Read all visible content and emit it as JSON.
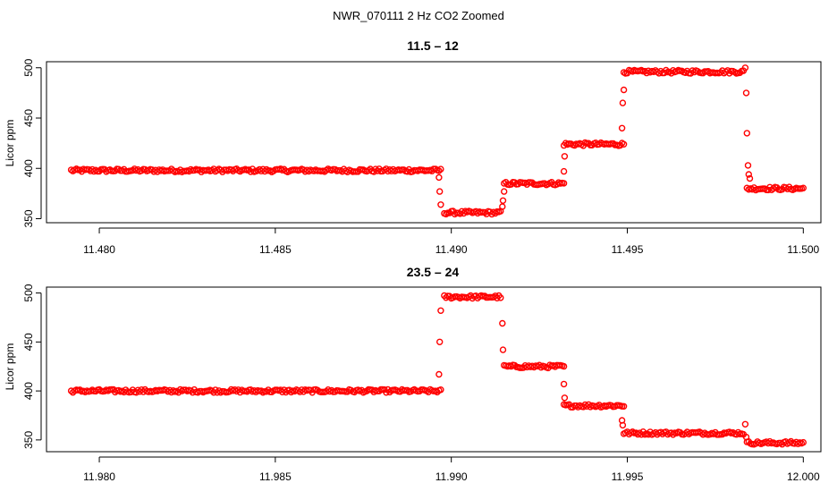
{
  "figure": {
    "title": "NWR_070111  2 Hz CO2 Zoomed"
  },
  "colors": {
    "points": "#ff0000",
    "axes": "#000000",
    "background": "#ffffff"
  },
  "chart_data": [
    {
      "type": "scatter",
      "title": "11.5 – 12",
      "xlabel": "",
      "ylabel": "Licor ppm",
      "xlim": [
        11.4785,
        11.5005
      ],
      "ylim": [
        346,
        506
      ],
      "xticks": [
        11.48,
        11.485,
        11.49,
        11.495,
        11.5
      ],
      "xtick_labels": [
        "11.480",
        "11.485",
        "11.490",
        "11.495",
        "11.500"
      ],
      "yticks": [
        350,
        400,
        450,
        500
      ],
      "ytick_labels": [
        "350",
        "400",
        "450",
        "500"
      ],
      "grid": false,
      "marker": "open-circle",
      "segments": [
        {
          "x_start": 11.4792,
          "x_end": 11.4897,
          "y": 398
        },
        {
          "x_start": 11.4898,
          "x_end": 11.4914,
          "y": 356
        },
        {
          "x_start": 11.4915,
          "x_end": 11.4932,
          "y": 385
        },
        {
          "x_start": 11.4932,
          "x_end": 11.4949,
          "y": 424
        },
        {
          "x_start": 11.4949,
          "x_end": 11.4983,
          "y": 496
        },
        {
          "x_start": 11.4984,
          "x_end": 11.5,
          "y": 380
        }
      ],
      "transitions": [
        {
          "x": 11.48965,
          "y": 391
        },
        {
          "x": 11.48967,
          "y": 377
        },
        {
          "x": 11.4897,
          "y": 364
        },
        {
          "x": 11.49145,
          "y": 362
        },
        {
          "x": 11.49147,
          "y": 368
        },
        {
          "x": 11.4915,
          "y": 377
        },
        {
          "x": 11.4932,
          "y": 397
        },
        {
          "x": 11.49322,
          "y": 412
        },
        {
          "x": 11.49485,
          "y": 440
        },
        {
          "x": 11.49487,
          "y": 465
        },
        {
          "x": 11.4949,
          "y": 478
        },
        {
          "x": 11.49835,
          "y": 500
        },
        {
          "x": 11.49838,
          "y": 475
        },
        {
          "x": 11.4984,
          "y": 435
        },
        {
          "x": 11.49843,
          "y": 403
        },
        {
          "x": 11.49845,
          "y": 394
        },
        {
          "x": 11.49848,
          "y": 390
        }
      ]
    },
    {
      "type": "scatter",
      "title": "23.5 – 24",
      "xlabel": "",
      "ylabel": "Licor ppm",
      "xlim": [
        11.9785,
        12.0005
      ],
      "ylim": [
        338,
        506
      ],
      "xticks": [
        11.98,
        11.985,
        11.99,
        11.995,
        12.0
      ],
      "xtick_labels": [
        "11.980",
        "11.985",
        "11.990",
        "11.995",
        "12.000"
      ],
      "yticks": [
        350,
        400,
        450,
        500
      ],
      "ytick_labels": [
        "350",
        "400",
        "450",
        "500"
      ],
      "grid": false,
      "marker": "open-circle",
      "segments": [
        {
          "x_start": 11.9792,
          "x_end": 11.9897,
          "y": 400
        },
        {
          "x_start": 11.9898,
          "x_end": 11.9914,
          "y": 496
        },
        {
          "x_start": 11.9915,
          "x_end": 11.9932,
          "y": 425
        },
        {
          "x_start": 11.9932,
          "x_end": 11.9949,
          "y": 385
        },
        {
          "x_start": 11.9949,
          "x_end": 11.9983,
          "y": 357
        },
        {
          "x_start": 11.9984,
          "x_end": 12.0,
          "y": 347
        }
      ],
      "transitions": [
        {
          "x": 11.98965,
          "y": 417
        },
        {
          "x": 11.98967,
          "y": 450
        },
        {
          "x": 11.9897,
          "y": 482
        },
        {
          "x": 11.99145,
          "y": 469
        },
        {
          "x": 11.99147,
          "y": 442
        },
        {
          "x": 11.9932,
          "y": 407
        },
        {
          "x": 11.99322,
          "y": 393
        },
        {
          "x": 11.99485,
          "y": 370
        },
        {
          "x": 11.99487,
          "y": 365
        },
        {
          "x": 11.99835,
          "y": 366
        },
        {
          "x": 11.99838,
          "y": 353
        }
      ]
    }
  ]
}
